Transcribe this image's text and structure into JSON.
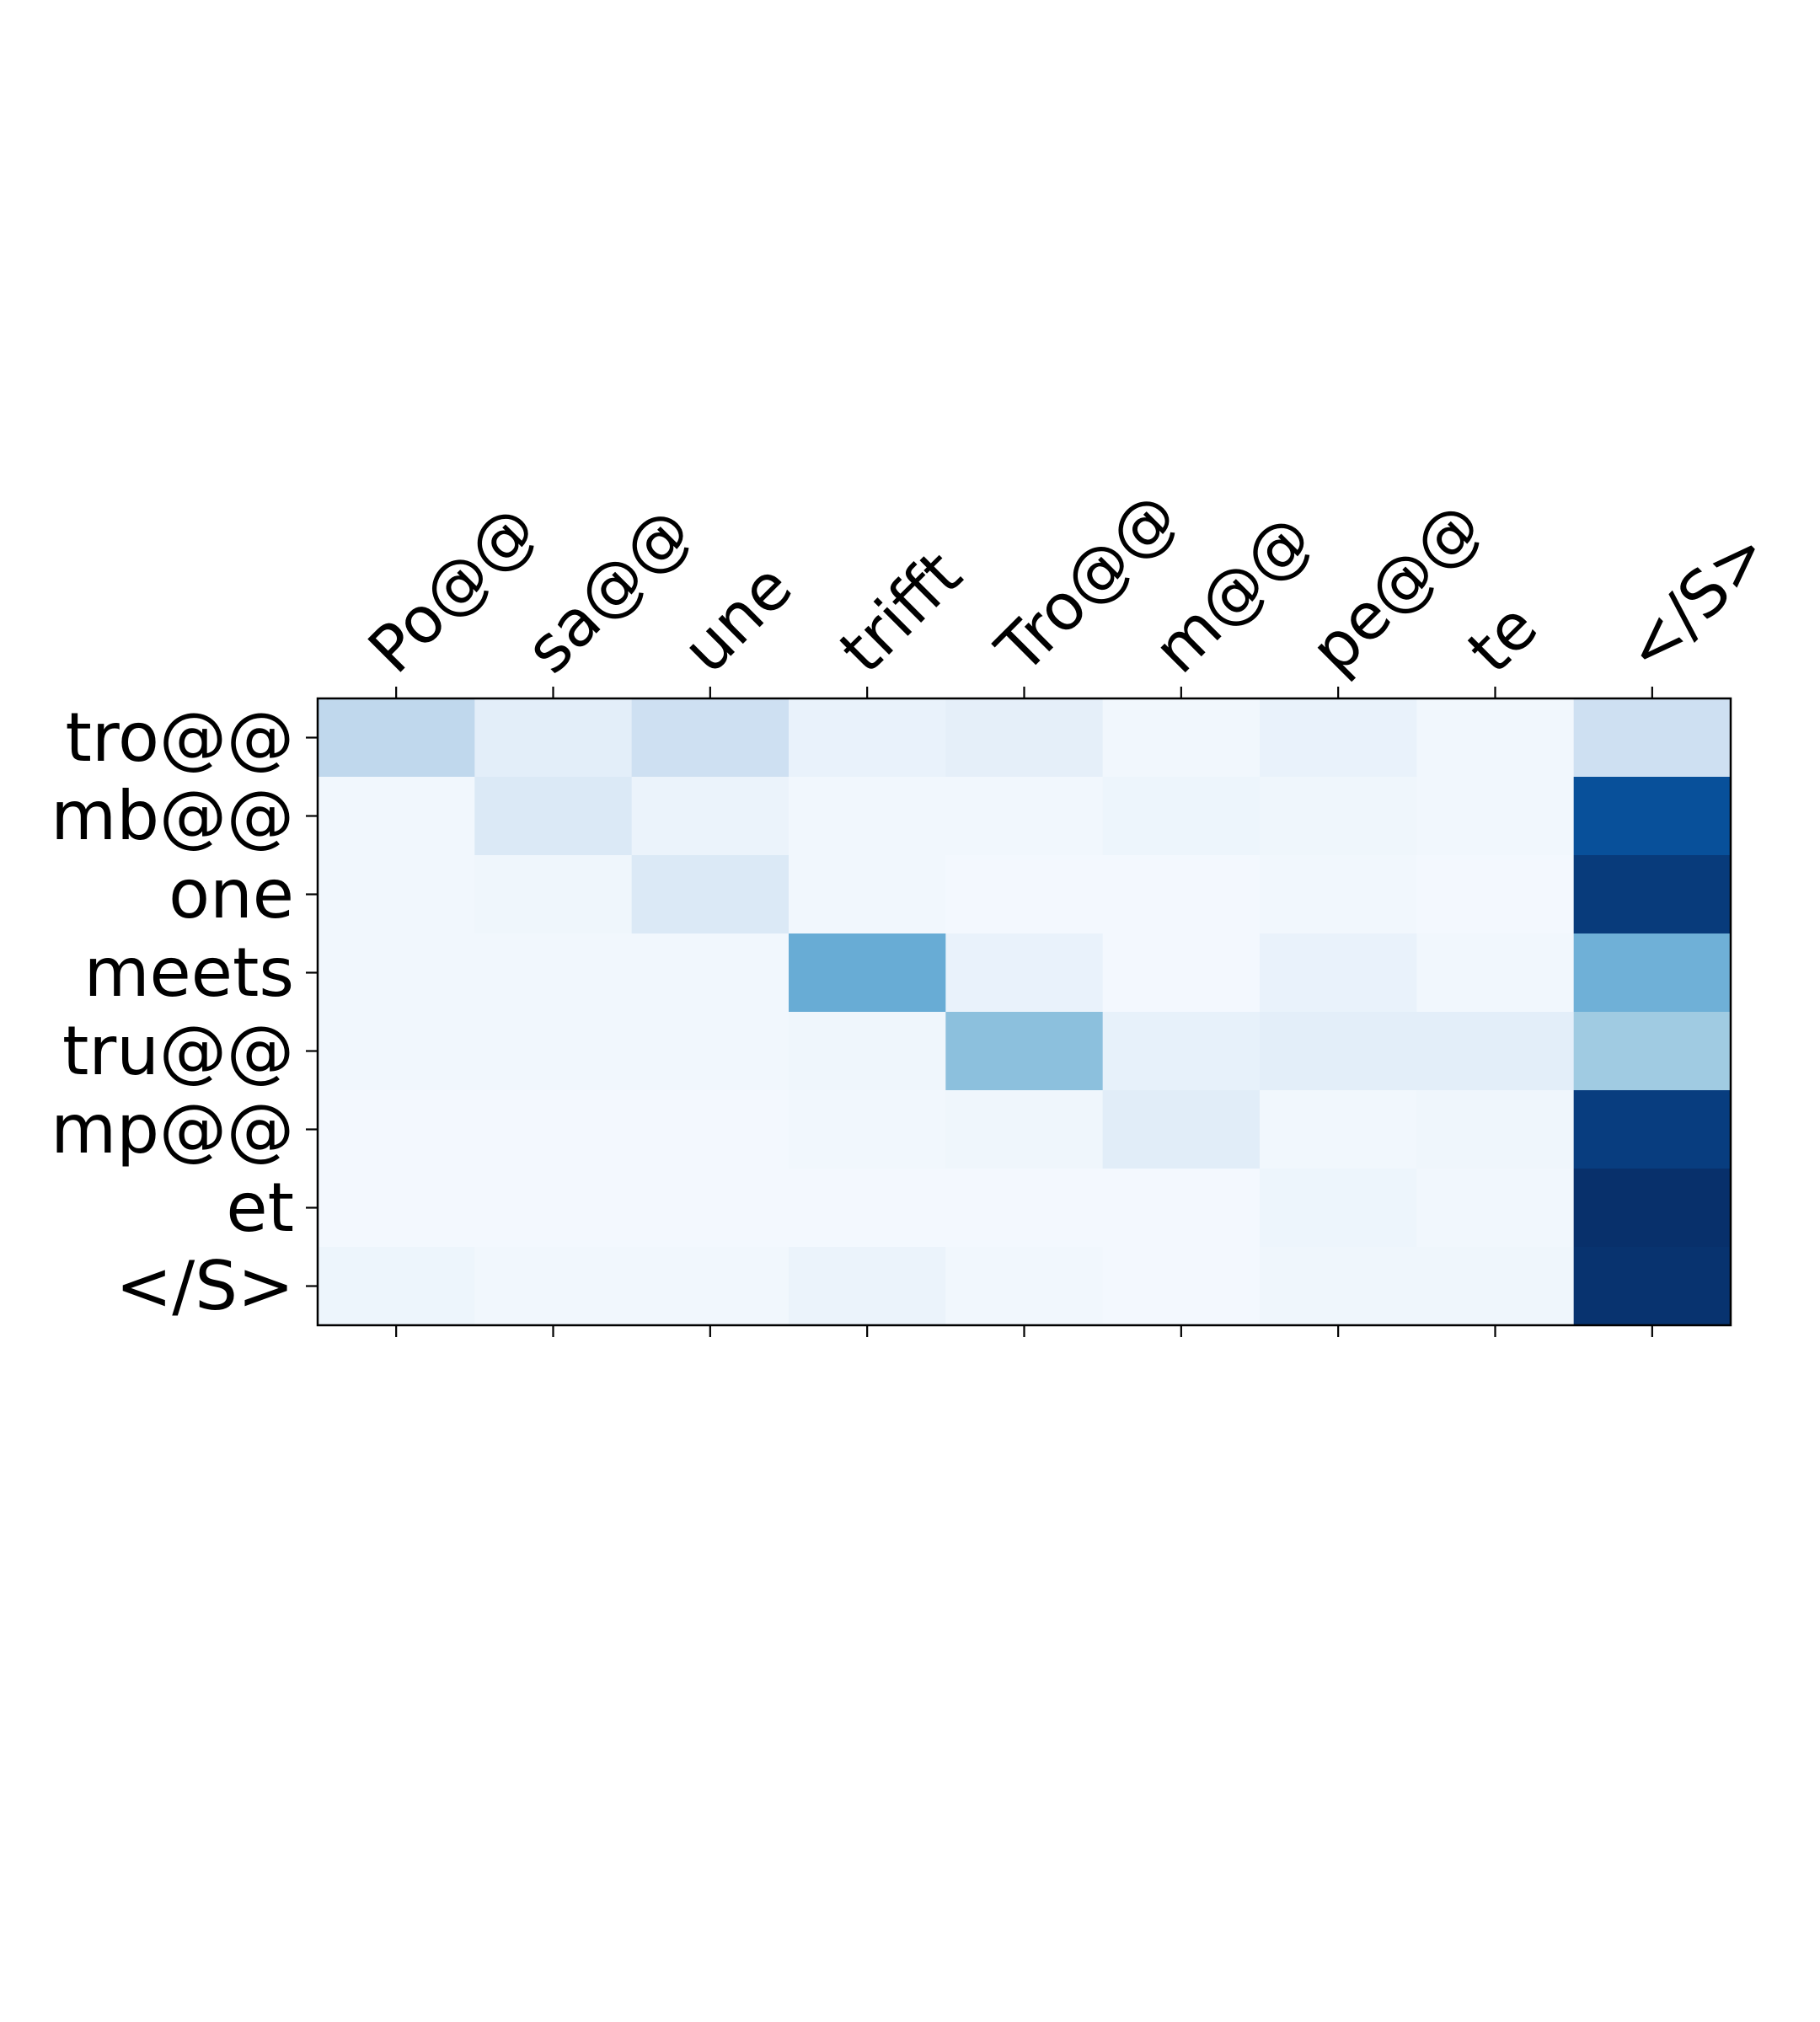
{
  "chart_data": {
    "type": "heatmap",
    "title": "",
    "xlabel": "",
    "ylabel": "",
    "colormap": "Blues",
    "value_range": [
      0,
      1
    ],
    "grid": false,
    "x_tick_position": "top",
    "x_tick_rotation_deg": 45,
    "x_labels": [
      "Po@@",
      "sa@@",
      "une",
      "trifft",
      "Tro@@",
      "m@@",
      "pe@@",
      "te",
      "</S>"
    ],
    "y_labels": [
      "tro@@",
      "mb@@",
      "one",
      "meets",
      "tru@@",
      "mp@@",
      "et",
      "</S>"
    ],
    "values": [
      [
        0.27,
        0.1,
        0.21,
        0.07,
        0.09,
        0.03,
        0.07,
        0.03,
        0.21
      ],
      [
        0.03,
        0.14,
        0.06,
        0.03,
        0.03,
        0.05,
        0.04,
        0.03,
        0.88
      ],
      [
        0.03,
        0.04,
        0.14,
        0.03,
        0.02,
        0.02,
        0.03,
        0.02,
        0.96
      ],
      [
        0.03,
        0.03,
        0.03,
        0.51,
        0.07,
        0.02,
        0.07,
        0.03,
        0.49
      ],
      [
        0.03,
        0.03,
        0.03,
        0.04,
        0.42,
        0.08,
        0.1,
        0.1,
        0.37
      ],
      [
        0.02,
        0.02,
        0.02,
        0.03,
        0.04,
        0.11,
        0.03,
        0.04,
        0.95
      ],
      [
        0.02,
        0.02,
        0.02,
        0.02,
        0.02,
        0.02,
        0.05,
        0.03,
        1.0
      ],
      [
        0.05,
        0.03,
        0.03,
        0.06,
        0.03,
        0.02,
        0.04,
        0.04,
        0.99
      ]
    ]
  }
}
